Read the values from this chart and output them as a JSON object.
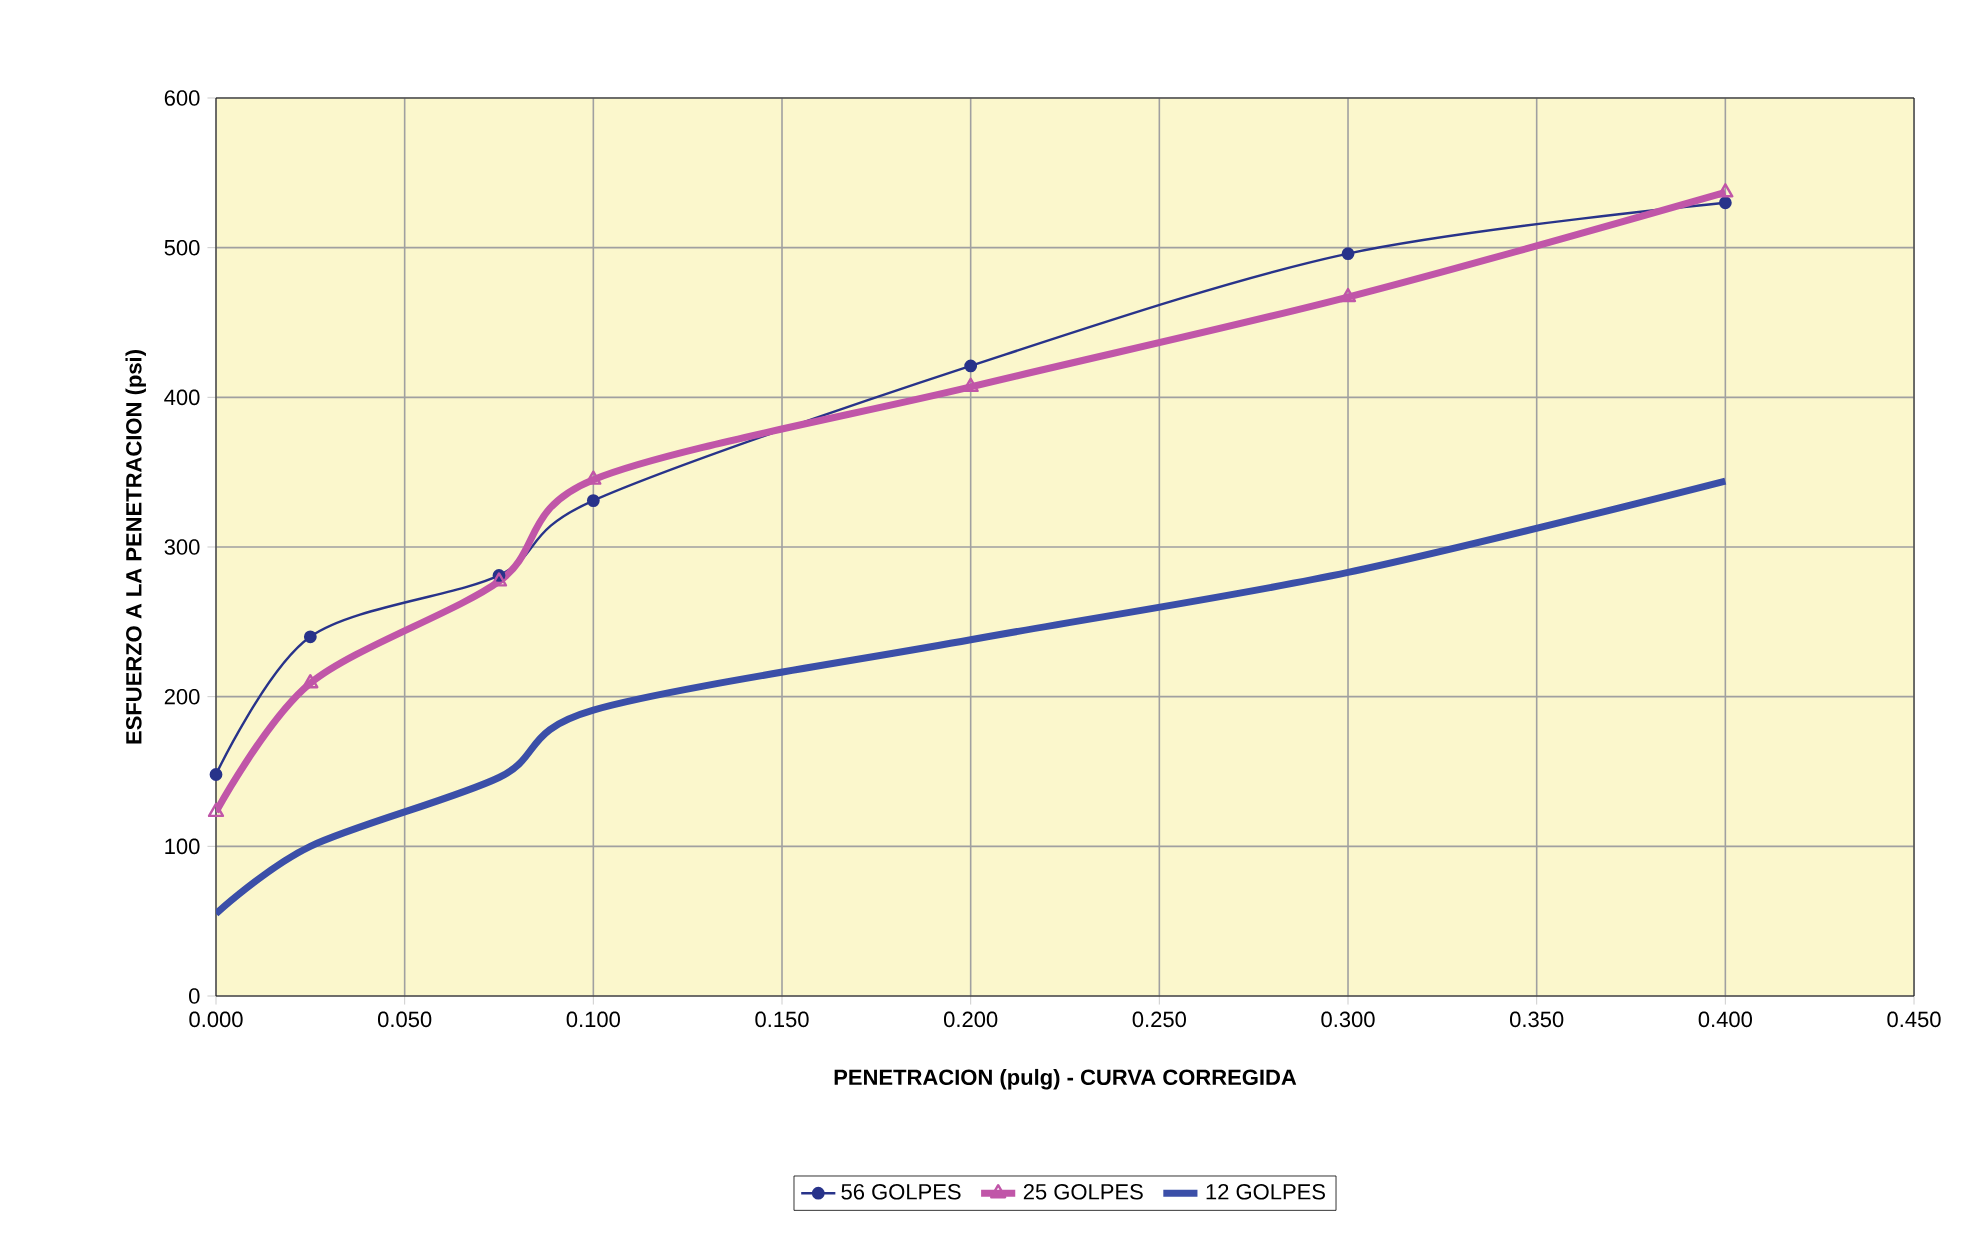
{
  "chart_data": {
    "type": "line",
    "xlabel": "PENETRACION  (pulg)  - CURVA CORREGIDA",
    "ylabel": "ESFUERZO  A LA PENETRACION  (psi)",
    "x": [
      0,
      0.025,
      0.075,
      0.1,
      0.2,
      0.3,
      0.4
    ],
    "series": [
      {
        "name": "56 GOLPES",
        "color": "#28338a",
        "marker": "circle",
        "values": [
          148,
          240,
          281,
          331,
          421,
          496,
          530
        ]
      },
      {
        "name": "25 GOLPES",
        "color": "#c056a8",
        "marker": "triangle",
        "values": [
          123,
          209,
          277,
          345,
          407,
          467,
          537
        ]
      },
      {
        "name": "12 GOLPES",
        "color": "#3b4fa8",
        "marker": "none",
        "values": [
          55,
          100,
          146,
          191,
          238,
          283,
          344
        ]
      }
    ],
    "xlim": [
      0,
      0.45
    ],
    "xticks": [
      {
        "value": 0,
        "label": "0.000"
      },
      {
        "value": 0.05,
        "label": "0.050"
      },
      {
        "value": 0.1,
        "label": "0.100"
      },
      {
        "value": 0.15,
        "label": "0.150"
      },
      {
        "value": 0.2,
        "label": "0.200"
      },
      {
        "value": 0.25,
        "label": "0.250"
      },
      {
        "value": 0.3,
        "label": "0.300"
      },
      {
        "value": 0.35,
        "label": "0.350"
      },
      {
        "value": 0.4,
        "label": "0.400"
      },
      {
        "value": 0.45,
        "label": "0.450"
      }
    ],
    "ylim": [
      0,
      600
    ],
    "yticks": [
      0,
      100,
      200,
      300,
      400,
      500,
      600
    ],
    "grid": true,
    "legend": "bottom",
    "line_style": "solid"
  }
}
